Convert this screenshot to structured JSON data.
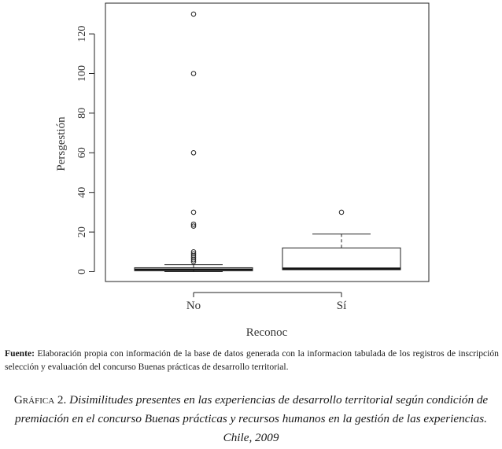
{
  "chart_data": {
    "type": "boxplot",
    "xlabel": "Reconoc",
    "ylabel": "Persgestión",
    "categories": [
      "No",
      "Sí"
    ],
    "ylim": [
      -5,
      135
    ],
    "yticks": [
      0,
      20,
      40,
      60,
      80,
      100,
      120
    ],
    "boxes": [
      {
        "name": "No",
        "whisker_low": 0,
        "q1": 0.5,
        "median": 1,
        "q3": 2,
        "whisker_high": 3.5,
        "outliers": [
          5,
          6,
          7,
          8,
          9,
          10,
          23,
          24,
          30,
          60,
          100,
          130
        ]
      },
      {
        "name": "Sí",
        "whisker_low": 1,
        "q1": 1,
        "median": 1.5,
        "q3": 12,
        "whisker_high": 19,
        "outliers": [
          30
        ]
      }
    ]
  },
  "source": {
    "label": "Fuente:",
    "text": "Elaboración propia con información de la base de datos generada con la informacion tabulada de los registros de inscripción  selección y evaluación del concurso Buenas prácticas de desarrollo territorial."
  },
  "caption": {
    "label": "Gráfica 2.",
    "text": "Disimilitudes presentes en las experiencias de desarrollo territorial según condición de premiación en el concurso Buenas prácticas y recursos humanos en la gestión de las experiencias. Chile, 2009"
  }
}
